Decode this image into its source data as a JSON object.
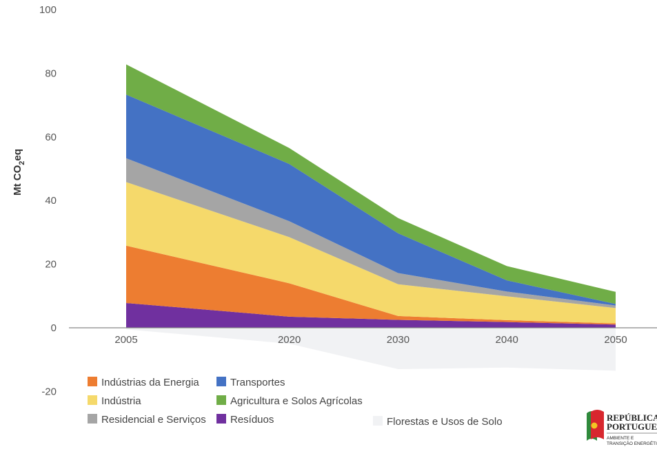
{
  "chart_data": {
    "type": "area",
    "stacked": true,
    "x": [
      2005,
      2020,
      2030,
      2040,
      2050
    ],
    "x_tick_labels": [
      "2005",
      "2020",
      "2030",
      "2040",
      "2050"
    ],
    "y_tick_labels": [
      "100",
      "80",
      "60",
      "40",
      "20",
      "0",
      "-20"
    ],
    "ylabel_main": "Mt CO",
    "ylabel_sub": "2",
    "ylabel_tail": "eq",
    "ylim": [
      -20,
      100
    ],
    "legend_position": "bottom",
    "series": [
      {
        "name": "Resíduos",
        "color": "#70309f",
        "values": [
          7.8,
          3.5,
          2.5,
          1.8,
          1.0
        ]
      },
      {
        "name": "Indústrias da Energia",
        "color": "#ed7d31",
        "values": [
          18.0,
          10.5,
          1.2,
          0.6,
          0.4
        ]
      },
      {
        "name": "Indústria",
        "color": "#f5d96b",
        "values": [
          20.0,
          14.5,
          10.0,
          7.5,
          4.8
        ]
      },
      {
        "name": "Residencial e Serviços",
        "color": "#a5a5a5",
        "values": [
          7.5,
          5.0,
          3.5,
          1.5,
          0.8
        ]
      },
      {
        "name": "Transportes",
        "color": "#4472c4",
        "values": [
          20.0,
          18.0,
          12.5,
          3.5,
          0.5
        ]
      },
      {
        "name": "Agricultura e Solos Agrícolas",
        "color": "#70ad47",
        "values": [
          9.5,
          5.0,
          4.8,
          4.5,
          3.8
        ]
      }
    ],
    "negative_series": {
      "name": "Florestas e Usos de Solo",
      "color": "#f1f2f4",
      "values": [
        -0.5,
        -5.0,
        -13.0,
        -12.5,
        -13.5
      ]
    }
  },
  "legend": [
    {
      "label": "Indústrias da Energia",
      "color": "#ed7d31"
    },
    {
      "label": "Transportes",
      "color": "#4472c4"
    },
    {
      "label": "Indústria",
      "color": "#f5d96b"
    },
    {
      "label": "Agricultura e Solos Agrícolas",
      "color": "#70ad47"
    },
    {
      "label": "Residencial e Serviços",
      "color": "#a5a5a5"
    },
    {
      "label": "Resíduos",
      "color": "#70309f"
    },
    {
      "label": "Florestas e Usos de Solo",
      "color": "#f1f2f4"
    }
  ],
  "logo": {
    "line1": "REPÚBLICA",
    "line2": "PORTUGUESA",
    "line3": "AMBIENTE E",
    "line4": "TRANSIÇÃO ENERGÉTICA"
  }
}
